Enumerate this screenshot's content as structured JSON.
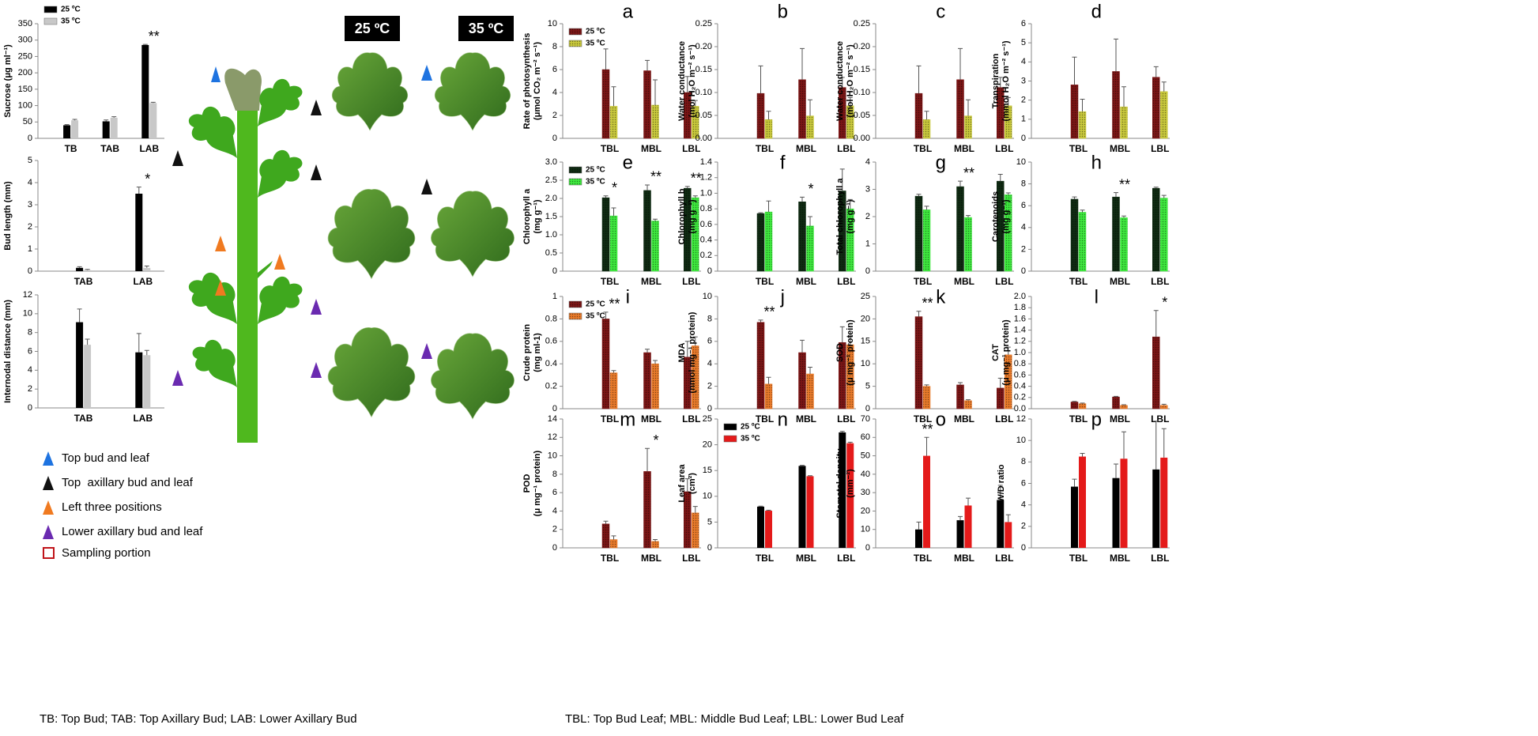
{
  "photo_headings": [
    "25 ºC",
    "35 ºC"
  ],
  "legend_items": [
    "Top bud and leaf",
    "Top  axillary bud and leaf",
    "Left three positions",
    "Lower axillary bud and leaf",
    "Sampling portion"
  ],
  "footnotes": [
    "TB: Top Bud; TAB: Top Axillary Bud; LAB: Lower Axillary Bud",
    "TBL: Top Bud Leaf; MBL: Middle Bud Leaf; LBL: Lower Bud Leaf"
  ],
  "chart_data": [
    {
      "type": "bar",
      "ylabel": [
        "Sucrose (μg ml⁻¹)"
      ],
      "categories": [
        "TB",
        "TAB",
        "LAB"
      ],
      "ylim": [
        0,
        350
      ],
      "yticks": [
        0,
        50,
        100,
        150,
        200,
        250,
        300,
        350
      ],
      "legend": "upper left",
      "series": [
        {
          "name": "25 ºC",
          "color": "#000000",
          "values": [
            40,
            52,
            285
          ],
          "errors": [
            2,
            4,
            2
          ]
        },
        {
          "name": "35 ºC",
          "color": "#c8c8c8",
          "values": [
            55,
            63,
            108
          ],
          "errors": [
            3,
            3,
            2
          ]
        }
      ],
      "annotations": [
        {
          "text": "**",
          "category": 2
        }
      ]
    },
    {
      "type": "bar",
      "ylabel": [
        "Bud length (mm)"
      ],
      "categories": [
        "TAB",
        "LAB"
      ],
      "ylim": [
        0,
        5
      ],
      "yticks": [
        0,
        1,
        2,
        3,
        4,
        5
      ],
      "series": [
        {
          "color": "#000000",
          "values": [
            0.15,
            3.5
          ],
          "errors": [
            0.05,
            0.3
          ]
        },
        {
          "color": "#c8c8c8",
          "values": [
            0.05,
            0.15
          ],
          "errors": [
            0.03,
            0.08
          ]
        }
      ],
      "annotations": [
        {
          "text": "*",
          "category": 1
        }
      ]
    },
    {
      "type": "bar",
      "ylabel": [
        "Internodal distance (mm)"
      ],
      "categories": [
        "TAB",
        "LAB"
      ],
      "ylim": [
        0,
        12
      ],
      "yticks": [
        0,
        2,
        4,
        6,
        8,
        10,
        12
      ],
      "series": [
        {
          "color": "#000000",
          "values": [
            9.1,
            5.9
          ],
          "errors": [
            1.4,
            2.0
          ]
        },
        {
          "color": "#c8c8c8",
          "values": [
            6.7,
            5.6
          ],
          "errors": [
            0.6,
            0.5
          ]
        }
      ]
    },
    {
      "type": "bar",
      "panel": "a",
      "ylabel": [
        "Rate of photosynthesis",
        "(μmol CO₂ m⁻² s⁻¹)"
      ],
      "categories": [
        "TBL",
        "MBL",
        "LBL"
      ],
      "ylim": [
        0,
        10
      ],
      "yticks": [
        0,
        2,
        4,
        6,
        8,
        10
      ],
      "legend": "upper left",
      "hatch": true,
      "series": [
        {
          "name": "25 ºC",
          "color": "#7a1515",
          "values": [
            6.0,
            5.9,
            4.0
          ],
          "errors": [
            1.8,
            0.9,
            1.4
          ]
        },
        {
          "name": "35 ºC",
          "color": "#c8c83c",
          "values": [
            2.8,
            2.9,
            2.8
          ],
          "errors": [
            1.7,
            2.2,
            0.5
          ]
        }
      ]
    },
    {
      "type": "bar",
      "panel": "b",
      "ylabel": [
        "Water conductance",
        "(mol H₂O m⁻² s⁻¹)"
      ],
      "categories": [
        "TBL",
        "MBL",
        "LBL"
      ],
      "ylim": [
        0,
        0.25
      ],
      "yticks": [
        {
          "value": 0,
          "label": "0.00"
        },
        0.05,
        {
          "value": 0.1,
          "label": "0.10"
        },
        0.15,
        {
          "value": 0.2,
          "label": "0.20"
        },
        0.25
      ],
      "hatch": true,
      "series": [
        {
          "color": "#7a1515",
          "values": [
            0.098,
            0.128,
            0.111
          ],
          "errors": [
            0.06,
            0.068,
            0.022
          ]
        },
        {
          "color": "#c8c83c",
          "values": [
            0.041,
            0.049,
            0.071
          ],
          "errors": [
            0.018,
            0.035,
            0.018
          ]
        }
      ]
    },
    {
      "type": "bar",
      "panel": "c",
      "ylabel": [
        "Water conductance",
        "(mol H₂O m⁻² s⁻¹)"
      ],
      "categories": [
        "TBL",
        "MBL",
        "LBL"
      ],
      "ylim": [
        0,
        0.25
      ],
      "yticks": [
        {
          "value": 0,
          "label": "0.00"
        },
        0.05,
        {
          "value": 0.1,
          "label": "0.10"
        },
        0.15,
        {
          "value": 0.2,
          "label": "0.20"
        },
        0.25
      ],
      "hatch": true,
      "series": [
        {
          "color": "#7a1515",
          "values": [
            0.098,
            0.128,
            0.111
          ],
          "errors": [
            0.06,
            0.068,
            0.022
          ]
        },
        {
          "color": "#c8c83c",
          "values": [
            0.041,
            0.049,
            0.071
          ],
          "errors": [
            0.018,
            0.035,
            0.018
          ]
        }
      ]
    },
    {
      "type": "bar",
      "panel": "d",
      "ylabel": [
        "Transpiration",
        "(mmol H₂O m⁻² s⁻¹)"
      ],
      "categories": [
        "TBL",
        "MBL",
        "LBL"
      ],
      "ylim": [
        0,
        6
      ],
      "yticks": [
        0,
        1,
        2,
        3,
        4,
        5,
        6
      ],
      "hatch": true,
      "series": [
        {
          "color": "#7a1515",
          "values": [
            2.8,
            3.5,
            3.2
          ],
          "errors": [
            1.45,
            1.7,
            0.55
          ]
        },
        {
          "color": "#c8c83c",
          "values": [
            1.4,
            1.65,
            2.45
          ],
          "errors": [
            0.65,
            1.05,
            0.5
          ]
        }
      ]
    },
    {
      "type": "bar",
      "panel": "e",
      "ylabel": [
        "Chlorophyll a",
        "(mg g⁻¹)"
      ],
      "categories": [
        "TBL",
        "MBL",
        "LBL"
      ],
      "ylim": [
        0,
        3
      ],
      "yticks": [
        0,
        0.5,
        {
          "value": 1,
          "label": "1.0"
        },
        1.5,
        {
          "value": 2,
          "label": "2.0"
        },
        2.5,
        {
          "value": 3,
          "label": "3.0"
        }
      ],
      "legend": "upper left",
      "hatch": true,
      "series": [
        {
          "name": "25 ºC",
          "color": "#0f2a12",
          "values": [
            2.02,
            2.22,
            2.28
          ],
          "errors": [
            0.05,
            0.15,
            0.05
          ]
        },
        {
          "name": "35 ºC",
          "color": "#3ee83e",
          "values": [
            1.52,
            1.38,
            2.02
          ],
          "errors": [
            0.22,
            0.05,
            0.05
          ]
        }
      ],
      "annotations": [
        {
          "text": "*",
          "category": 0
        },
        {
          "text": "**",
          "category": 1
        },
        {
          "text": "**",
          "category": 2
        }
      ]
    },
    {
      "type": "bar",
      "panel": "f",
      "ylabel": [
        "Chlorophyll b",
        "(mg g⁻¹)"
      ],
      "categories": [
        "TBL",
        "MBL",
        "LBL"
      ],
      "ylim": [
        0,
        1.4
      ],
      "yticks": [
        0,
        0.2,
        0.4,
        0.6,
        0.8,
        {
          "value": 1,
          "label": "1.0"
        },
        1.2,
        1.4
      ],
      "hatch": true,
      "series": [
        {
          "color": "#0f2a12",
          "values": [
            0.74,
            0.89,
            1.03
          ],
          "errors": [
            0.01,
            0.06,
            0.28
          ]
        },
        {
          "color": "#3ee83e",
          "values": [
            0.76,
            0.58,
            0.8
          ],
          "errors": [
            0.14,
            0.12,
            0.12
          ]
        }
      ],
      "annotations": [
        {
          "text": "*",
          "category": 1
        }
      ]
    },
    {
      "type": "bar",
      "panel": "g",
      "ylabel": [
        "Total chlorophyll a",
        "(mg g⁻¹)"
      ],
      "categories": [
        "TBL",
        "MBL",
        "LBL"
      ],
      "ylim": [
        0,
        4
      ],
      "yticks": [
        0,
        1,
        2,
        3,
        4
      ],
      "hatch": true,
      "series": [
        {
          "color": "#0f2a12",
          "values": [
            2.75,
            3.1,
            3.3
          ],
          "errors": [
            0.07,
            0.2,
            0.25
          ]
        },
        {
          "color": "#3ee83e",
          "values": [
            2.25,
            1.97,
            2.8
          ],
          "errors": [
            0.13,
            0.07,
            0.07
          ]
        }
      ],
      "annotations": [
        {
          "text": "**",
          "category": 1
        }
      ]
    },
    {
      "type": "bar",
      "panel": "h",
      "ylabel": [
        "Carotenoids",
        "(mg g⁻¹)"
      ],
      "categories": [
        "TBL",
        "MBL",
        "LBL"
      ],
      "ylim": [
        0,
        10
      ],
      "yticks": [
        0,
        2,
        4,
        6,
        8,
        10
      ],
      "hatch": true,
      "series": [
        {
          "color": "#0f2a12",
          "values": [
            6.6,
            6.8,
            7.6
          ],
          "errors": [
            0.2,
            0.4,
            0.1
          ]
        },
        {
          "color": "#3ee83e",
          "values": [
            5.4,
            4.9,
            6.7
          ],
          "errors": [
            0.2,
            0.15,
            0.25
          ]
        }
      ],
      "annotations": [
        {
          "text": "**",
          "category": 1
        }
      ]
    },
    {
      "type": "bar",
      "panel": "i",
      "ylabel": [
        "Crude protein",
        "(mg ml-1)"
      ],
      "categories": [
        "TBL",
        "MBL",
        "LBL"
      ],
      "ylim": [
        0,
        1
      ],
      "yticks": [
        0,
        0.2,
        0.4,
        0.6,
        0.8,
        1
      ],
      "legend": "upper left",
      "hatch": true,
      "series": [
        {
          "name": "25 ºC",
          "color": "#7a1515",
          "values": [
            0.8,
            0.5,
            0.46
          ],
          "errors": [
            0.06,
            0.03,
            0.14
          ]
        },
        {
          "name": "35 ºC",
          "color": "#e87a2a",
          "values": [
            0.32,
            0.4,
            0.56
          ],
          "errors": [
            0.02,
            0.03,
            0.08
          ]
        }
      ],
      "annotations": [
        {
          "text": "**",
          "category": 0
        }
      ]
    },
    {
      "type": "bar",
      "panel": "j",
      "ylabel": [
        "MDA",
        "(nmol mg⁻¹ protein)"
      ],
      "categories": [
        "TBL",
        "MBL",
        "LBL"
      ],
      "ylim": [
        0,
        10
      ],
      "yticks": [
        0,
        2,
        4,
        6,
        8,
        10
      ],
      "hatch": true,
      "series": [
        {
          "color": "#7a1515",
          "values": [
            7.7,
            5.0,
            5.9
          ],
          "errors": [
            0.2,
            1.1,
            1.4
          ]
        },
        {
          "color": "#e87a2a",
          "values": [
            2.2,
            3.1,
            5.7
          ],
          "errors": [
            0.6,
            0.6,
            0.8
          ]
        }
      ],
      "annotations": [
        {
          "text": "**",
          "category": 0
        }
      ]
    },
    {
      "type": "bar",
      "panel": "k",
      "ylabel": [
        "SOD",
        "(μ mg⁻¹ protein)"
      ],
      "categories": [
        "TBL",
        "MBL",
        "LBL"
      ],
      "ylim": [
        0,
        25
      ],
      "yticks": [
        0,
        5,
        10,
        15,
        20,
        25
      ],
      "hatch": true,
      "series": [
        {
          "color": "#7a1515",
          "values": [
            20.5,
            5.3,
            4.6
          ],
          "errors": [
            1.2,
            0.5,
            2.2
          ]
        },
        {
          "color": "#e87a2a",
          "values": [
            5.0,
            1.8,
            12.0
          ],
          "errors": [
            0.3,
            0.2,
            1.7
          ]
        }
      ],
      "annotations": [
        {
          "text": "**",
          "category": 0
        }
      ]
    },
    {
      "type": "bar",
      "panel": "l",
      "ylabel": [
        "CAT",
        "(μ mg⁻¹ protein)"
      ],
      "categories": [
        "TBL",
        "MBL",
        "LBL"
      ],
      "ylim": [
        0,
        2
      ],
      "yticks": [
        {
          "value": 0,
          "label": "0.0"
        },
        0.2,
        0.4,
        0.6,
        0.8,
        {
          "value": 1,
          "label": "1.0"
        },
        1.2,
        1.4,
        1.6,
        1.8,
        {
          "value": 2,
          "label": "2.0"
        }
      ],
      "hatch": true,
      "series": [
        {
          "color": "#7a1515",
          "values": [
            0.12,
            0.21,
            1.28
          ],
          "errors": [
            0.01,
            0.01,
            0.47
          ]
        },
        {
          "color": "#e87a2a",
          "values": [
            0.09,
            0.06,
            0.06
          ],
          "errors": [
            0.01,
            0.01,
            0.02
          ]
        }
      ],
      "annotations": [
        {
          "text": "*",
          "category": 2
        }
      ]
    },
    {
      "type": "bar",
      "panel": "m",
      "ylabel": [
        "POD",
        "(μ mg⁻¹ protein)"
      ],
      "categories": [
        "TBL",
        "MBL",
        "LBL"
      ],
      "ylim": [
        0,
        14
      ],
      "yticks": [
        0,
        2,
        4,
        6,
        8,
        10,
        12,
        14
      ],
      "hatch": true,
      "series": [
        {
          "color": "#7a1515",
          "values": [
            2.6,
            8.3,
            6.1
          ],
          "errors": [
            0.3,
            2.5,
            1.4
          ]
        },
        {
          "color": "#e87a2a",
          "values": [
            0.9,
            0.7,
            3.8
          ],
          "errors": [
            0.4,
            0.2,
            0.7
          ]
        }
      ],
      "annotations": [
        {
          "text": "*",
          "category": 1
        }
      ]
    },
    {
      "type": "bar",
      "panel": "n",
      "ylabel": [
        "Leaf area",
        "(cm²)"
      ],
      "categories": [
        "TBL",
        "MBL",
        "LBL"
      ],
      "ylim": [
        0,
        25
      ],
      "yticks": [
        0,
        5,
        10,
        15,
        20,
        25
      ],
      "legend": "upper left",
      "series": [
        {
          "name": "25 ºC",
          "color": "#000000",
          "values": [
            8.0,
            15.9,
            22.4
          ],
          "errors": [
            0.1,
            0.1,
            0.2
          ]
        },
        {
          "name": "35 ºC",
          "color": "#e41a1a",
          "values": [
            7.2,
            13.9,
            20.3
          ],
          "errors": [
            0.1,
            0.1,
            0.2
          ]
        }
      ]
    },
    {
      "type": "bar",
      "panel": "o",
      "ylabel": [
        "Stomatal density",
        "(mm⁻²)"
      ],
      "categories": [
        "TBL",
        "MBL",
        "LBL"
      ],
      "ylim": [
        0,
        70
      ],
      "yticks": [
        0,
        10,
        20,
        30,
        40,
        50,
        60,
        70
      ],
      "series": [
        {
          "color": "#000000",
          "values": [
            10,
            15,
            26
          ],
          "errors": [
            4,
            2,
            8
          ]
        },
        {
          "color": "#e41a1a",
          "values": [
            50,
            23,
            14
          ],
          "errors": [
            10,
            4,
            4
          ]
        }
      ],
      "annotations": [
        {
          "text": "**",
          "category": 0
        }
      ]
    },
    {
      "type": "bar",
      "panel": "p",
      "ylabel": [
        "W/D ratio"
      ],
      "categories": [
        "TBL",
        "MBL",
        "LBL"
      ],
      "ylim": [
        0,
        12
      ],
      "yticks": [
        0,
        2,
        4,
        6,
        8,
        10,
        12
      ],
      "series": [
        {
          "color": "#000000",
          "values": [
            5.7,
            6.5,
            7.3
          ],
          "errors": [
            0.7,
            1.3,
            4.5
          ]
        },
        {
          "color": "#e41a1a",
          "values": [
            8.5,
            8.3,
            8.4
          ],
          "errors": [
            0.3,
            2.5,
            2.7
          ]
        }
      ]
    }
  ]
}
